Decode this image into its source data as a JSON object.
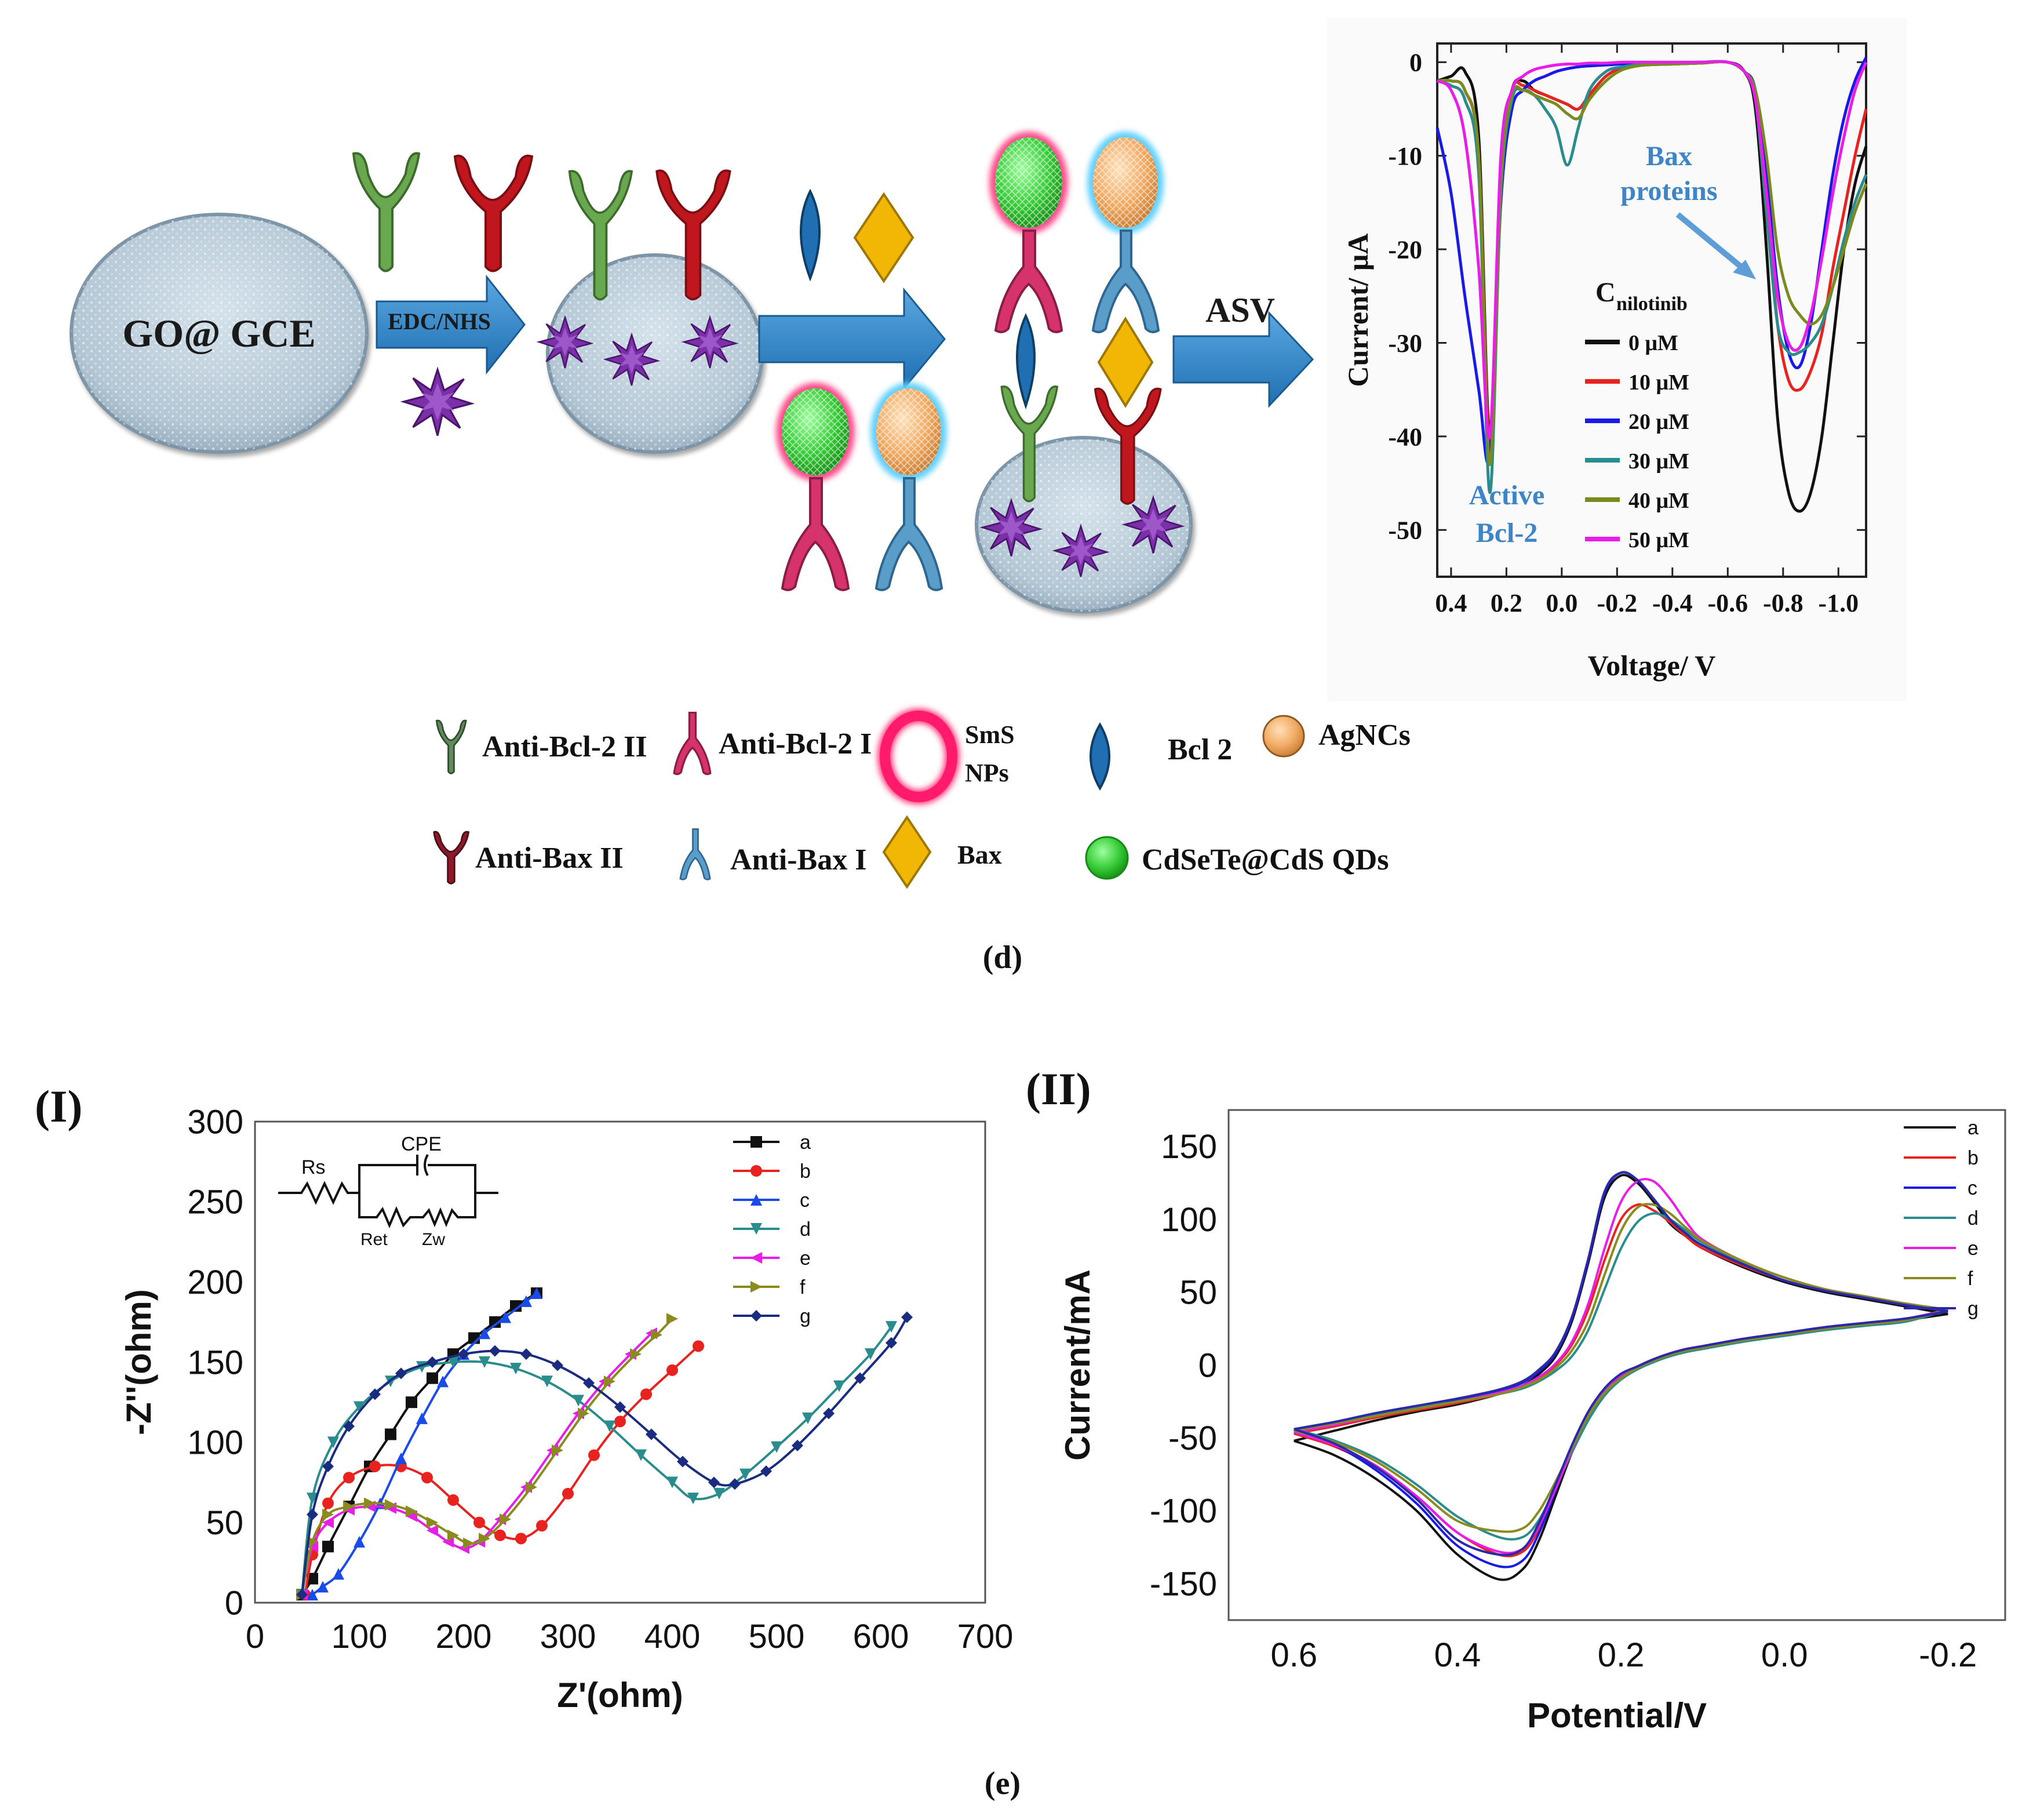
{
  "panel_d": {
    "caption": "(d)",
    "electrode_label": "GO@ GCE",
    "step1_label": "EDC/NHS",
    "step4_label": "ASV",
    "legend": {
      "anti_bcl2_ii": "Anti-Bcl-2 II",
      "anti_bcl2_i": "Anti-Bcl-2 I",
      "sms_nps_line1": "SmS",
      "sms_nps_line2": "NPs",
      "bcl2": "Bcl 2",
      "agncs": "AgNCs",
      "anti_bax_ii": "Anti-Bax II",
      "anti_bax_i": "Anti-Bax I",
      "bax": "Bax",
      "qds": "CdSeTe@CdS QDs"
    },
    "annotations": {
      "bax_line1": "Bax",
      "bax_line2": "proteins",
      "bcl2_line1": "Active",
      "bcl2_line2": "Bcl-2",
      "conc_header_main": "C",
      "conc_header_sub": "nilotinib"
    },
    "colors": {
      "electrode": "#b8cad7",
      "arrow": "#2f7fc1",
      "green_ab": "#6aa84f",
      "red_ab": "#c0171e",
      "pink_ab": "#d6336c",
      "blue_ab": "#5b9dc9",
      "bcl2_drop": "#1f6fb2",
      "bax_diamond": "#f2b705",
      "qd_green": "#34c934",
      "agnc_orange": "#f0a860",
      "annotation_blue": "#3d85c6"
    }
  },
  "panel_e": {
    "caption": "(e)",
    "label_I": "(I)",
    "label_II": "(II)",
    "circuit": {
      "rs": "Rs",
      "cpe": "CPE",
      "ret": "Ret",
      "zw": "Zw"
    }
  },
  "chart_data": [
    {
      "id": "asv",
      "type": "line",
      "title": "",
      "xlabel": "Voltage/ V",
      "ylabel": "Current/ μA",
      "xlim": [
        0.45,
        -1.1
      ],
      "ylim": [
        -55,
        2
      ],
      "xticks": [
        0.4,
        0.2,
        0.0,
        -0.2,
        -0.4,
        -0.6,
        -0.8,
        -1.0
      ],
      "xtick_labels": [
        "0.4",
        "0.2",
        "0.0",
        "-0.2",
        "-0.4",
        "-0.6",
        "-0.8",
        "-1.0"
      ],
      "yticks": [
        0,
        -10,
        -20,
        -30,
        -40,
        -50
      ],
      "ytick_labels": [
        "0",
        "-10",
        "-20",
        "-30",
        "-40",
        "-50"
      ],
      "legend_position": "right-center",
      "x": [
        0.45,
        0.4,
        0.35,
        0.3,
        0.26,
        0.22,
        0.18,
        0.14,
        0.1,
        0.06,
        0.02,
        -0.02,
        -0.06,
        -0.1,
        -0.16,
        -0.22,
        -0.3,
        -0.4,
        -0.5,
        -0.6,
        -0.66,
        -0.7,
        -0.74,
        -0.78,
        -0.82,
        -0.86,
        -0.9,
        -0.94,
        -0.98,
        -1.02,
        -1.06,
        -1.1
      ],
      "series": [
        {
          "name": "0 μM",
          "color": "#111111",
          "values": [
            -2,
            -1.5,
            -1,
            -8,
            -40,
            -12,
            -3,
            -2,
            -3,
            -3.5,
            -4,
            -4.5,
            -5,
            -3.5,
            -1.5,
            -0.6,
            -0.3,
            -0.2,
            -0.1,
            0,
            -1,
            -5,
            -20,
            -38,
            -46,
            -48,
            -46,
            -40,
            -30,
            -20,
            -13,
            -9
          ]
        },
        {
          "name": "10 μM",
          "color": "#e8231f",
          "values": [
            -2,
            -2,
            -3,
            -10,
            -41,
            -12,
            -3,
            -2.5,
            -3,
            -3.5,
            -4,
            -4.5,
            -5,
            -3.5,
            -1.5,
            -0.6,
            -0.3,
            -0.2,
            -0.1,
            0,
            -1,
            -4,
            -15,
            -28,
            -34,
            -35,
            -33,
            -29,
            -22,
            -16,
            -10,
            -5
          ]
        },
        {
          "name": "20 μM",
          "color": "#1a1ae6",
          "values": [
            -7,
            -14,
            -25,
            -35,
            -42,
            -15,
            -5,
            -3,
            -2,
            -1.5,
            -1,
            -0.7,
            -0.5,
            -0.4,
            -0.3,
            -0.2,
            -0.1,
            -0.1,
            0,
            0,
            -1,
            -3,
            -12,
            -24,
            -31,
            -32.5,
            -28,
            -20,
            -12,
            -6,
            -2,
            0.5
          ]
        },
        {
          "name": "30 μM",
          "color": "#2a8c8c",
          "values": [
            -2,
            -2.5,
            -4,
            -12,
            -46,
            -14,
            -4,
            -3,
            -3.5,
            -5,
            -7,
            -11,
            -7,
            -3,
            -1,
            -0.5,
            -0.2,
            -0.1,
            0,
            0,
            -1,
            -4,
            -16,
            -28,
            -31,
            -31,
            -30,
            -28,
            -24,
            -19,
            -15,
            -12
          ]
        },
        {
          "name": "40 μM",
          "color": "#7b8a1f",
          "values": [
            -2,
            -2,
            -3,
            -10,
            -43,
            -13,
            -3.5,
            -3,
            -3.5,
            -4,
            -4.5,
            -5.5,
            -6,
            -4,
            -2,
            -0.8,
            -0.3,
            -0.2,
            -0.1,
            0,
            -1,
            -3,
            -10,
            -20,
            -25,
            -27,
            -28,
            -27,
            -24,
            -20,
            -16,
            -13
          ]
        },
        {
          "name": "50 μM",
          "color": "#e81ee8",
          "values": [
            -2,
            -3,
            -8,
            -22,
            -40,
            -10,
            -3,
            -1.5,
            -0.8,
            -0.5,
            -0.3,
            -0.2,
            -0.2,
            -0.1,
            -0.1,
            0,
            0,
            0,
            0,
            0,
            -1,
            -4,
            -14,
            -25,
            -30,
            -30.5,
            -27,
            -21,
            -14,
            -8,
            -3,
            0
          ]
        }
      ]
    },
    {
      "id": "nyquist",
      "type": "scatter",
      "title": "",
      "xlabel": "Z'(ohm)",
      "ylabel": "-Z''(ohm)",
      "xlim": [
        0,
        700
      ],
      "ylim": [
        0,
        300
      ],
      "xticks": [
        0,
        100,
        200,
        300,
        400,
        500,
        600,
        700
      ],
      "yticks": [
        0,
        50,
        100,
        150,
        200,
        250,
        300
      ],
      "legend_position": "top-right",
      "series": [
        {
          "name": "a",
          "color": "#111111",
          "marker": "square",
          "x": [
            45,
            55,
            70,
            90,
            110,
            130,
            150,
            170,
            190,
            210,
            230,
            250,
            270
          ],
          "y": [
            5,
            15,
            35,
            60,
            85,
            105,
            125,
            140,
            155,
            165,
            175,
            185,
            193
          ]
        },
        {
          "name": "b",
          "color": "#e8231f",
          "marker": "circle",
          "x": [
            48,
            55,
            70,
            90,
            115,
            140,
            165,
            190,
            215,
            235,
            255,
            275,
            300,
            325,
            350,
            375,
            400,
            425
          ],
          "y": [
            5,
            30,
            62,
            78,
            85,
            85,
            78,
            64,
            50,
            42,
            40,
            48,
            68,
            92,
            113,
            130,
            145,
            160
          ]
        },
        {
          "name": "c",
          "color": "#1a4be6",
          "marker": "triangle-up",
          "x": [
            55,
            65,
            80,
            100,
            120,
            140,
            160,
            180,
            200,
            220,
            240,
            260,
            270
          ],
          "y": [
            5,
            10,
            18,
            38,
            62,
            90,
            115,
            138,
            155,
            168,
            178,
            188,
            193
          ]
        },
        {
          "name": "d",
          "color": "#2a8c8c",
          "marker": "triangle-down",
          "x": [
            45,
            55,
            75,
            100,
            130,
            160,
            190,
            220,
            250,
            280,
            310,
            340,
            370,
            400,
            420,
            445,
            470,
            500,
            530,
            560,
            590,
            610
          ],
          "y": [
            5,
            65,
            100,
            122,
            138,
            147,
            150,
            150,
            146,
            138,
            126,
            110,
            92,
            75,
            65,
            68,
            80,
            97,
            115,
            135,
            155,
            172
          ]
        },
        {
          "name": "e",
          "color": "#e81ee8",
          "marker": "triangle-left",
          "x": [
            45,
            55,
            70,
            90,
            110,
            130,
            150,
            170,
            185,
            200,
            215,
            235,
            260,
            285,
            310,
            335,
            360,
            380
          ],
          "y": [
            5,
            35,
            50,
            58,
            60,
            59,
            54,
            45,
            38,
            34,
            38,
            52,
            72,
            95,
            118,
            138,
            155,
            168
          ]
        },
        {
          "name": "f",
          "color": "#8a8a1f",
          "marker": "triangle-right",
          "x": [
            45,
            55,
            70,
            90,
            110,
            130,
            150,
            170,
            190,
            205,
            220,
            240,
            265,
            290,
            315,
            340,
            365,
            385,
            400
          ],
          "y": [
            5,
            38,
            55,
            60,
            62,
            61,
            57,
            50,
            42,
            37,
            40,
            52,
            72,
            95,
            118,
            138,
            155,
            167,
            177
          ]
        },
        {
          "name": "g",
          "color": "#1a2c80",
          "marker": "diamond",
          "x": [
            45,
            55,
            70,
            90,
            115,
            140,
            170,
            200,
            230,
            260,
            290,
            320,
            350,
            380,
            410,
            440,
            460,
            490,
            520,
            550,
            580,
            610,
            625
          ],
          "y": [
            5,
            55,
            85,
            110,
            130,
            143,
            150,
            155,
            157,
            155,
            148,
            137,
            122,
            105,
            88,
            75,
            74,
            82,
            98,
            118,
            140,
            162,
            178
          ]
        }
      ]
    },
    {
      "id": "cv",
      "type": "line",
      "title": "",
      "xlabel": "Potential/V",
      "ylabel": "Current/mA",
      "xlim": [
        0.68,
        -0.27
      ],
      "ylim": [
        -175,
        175
      ],
      "xticks": [
        0.6,
        0.4,
        0.2,
        0.0,
        -0.2
      ],
      "xtick_labels": [
        "0.6",
        "0.4",
        "0.2",
        "0.0",
        "-0.2"
      ],
      "yticks": [
        150,
        100,
        50,
        0,
        -50,
        -100,
        -150
      ],
      "legend_position": "top-right",
      "x": [
        0.6,
        0.55,
        0.5,
        0.45,
        0.4,
        0.35,
        0.32,
        0.3,
        0.28,
        0.26,
        0.24,
        0.22,
        0.2,
        0.18,
        0.16,
        0.14,
        0.12,
        0.1,
        0.05,
        0.0,
        -0.05,
        -0.1,
        -0.15,
        -0.2
      ],
      "series": [
        {
          "name": "a",
          "color": "#111111",
          "forward": [
            -52,
            -45,
            -38,
            -32,
            -27,
            -20,
            -14,
            -6,
            6,
            30,
            70,
            115,
            130,
            125,
            112,
            97,
            88,
            80,
            67,
            57,
            50,
            45,
            40,
            35
          ],
          "reverse": [
            -52,
            -62,
            -78,
            -100,
            -130,
            -147,
            -140,
            -120,
            -90,
            -60,
            -35,
            -18,
            -8,
            -2,
            3,
            7,
            10,
            12,
            17,
            21,
            25,
            28,
            31,
            35
          ]
        },
        {
          "name": "b",
          "color": "#e8231f",
          "forward": [
            -47,
            -42,
            -36,
            -31,
            -26,
            -20,
            -15,
            -9,
            0,
            14,
            38,
            72,
            100,
            110,
            106,
            98,
            88,
            80,
            68,
            58,
            51,
            46,
            41,
            37
          ],
          "reverse": [
            -47,
            -56,
            -70,
            -90,
            -115,
            -130,
            -128,
            -112,
            -86,
            -58,
            -34,
            -17,
            -7,
            -1,
            4,
            8,
            11,
            13,
            18,
            22,
            26,
            29,
            32,
            37
          ]
        },
        {
          "name": "c",
          "color": "#1a1ae6",
          "forward": [
            -45,
            -40,
            -34,
            -29,
            -24,
            -18,
            -12,
            -4,
            8,
            32,
            72,
            118,
            132,
            127,
            114,
            100,
            90,
            82,
            69,
            58,
            51,
            46,
            41,
            37
          ],
          "reverse": [
            -45,
            -55,
            -72,
            -95,
            -124,
            -138,
            -134,
            -115,
            -86,
            -57,
            -33,
            -17,
            -7,
            -1,
            4,
            8,
            11,
            13,
            18,
            22,
            26,
            29,
            32,
            37
          ]
        },
        {
          "name": "d",
          "color": "#2a8c8c",
          "forward": [
            -44,
            -39,
            -34,
            -29,
            -25,
            -20,
            -16,
            -11,
            -4,
            6,
            24,
            52,
            80,
            98,
            104,
            100,
            92,
            84,
            70,
            60,
            52,
            47,
            42,
            38
          ],
          "reverse": [
            -44,
            -52,
            -64,
            -82,
            -104,
            -118,
            -118,
            -106,
            -84,
            -60,
            -38,
            -21,
            -10,
            -3,
            2,
            6,
            9,
            11,
            16,
            20,
            24,
            27,
            30,
            38
          ]
        },
        {
          "name": "e",
          "color": "#e81ee8",
          "forward": [
            -46,
            -41,
            -35,
            -30,
            -25,
            -19,
            -14,
            -8,
            1,
            16,
            42,
            80,
            112,
            126,
            126,
            114,
            98,
            86,
            71,
            60,
            52,
            47,
            42,
            38
          ],
          "reverse": [
            -46,
            -55,
            -69,
            -90,
            -115,
            -128,
            -126,
            -110,
            -85,
            -58,
            -34,
            -17,
            -7,
            -1,
            4,
            8,
            11,
            13,
            18,
            22,
            26,
            29,
            32,
            38
          ]
        },
        {
          "name": "f",
          "color": "#8a8a1f",
          "forward": [
            -45,
            -40,
            -35,
            -30,
            -25,
            -20,
            -15,
            -10,
            -2,
            10,
            30,
            62,
            92,
            108,
            110,
            104,
            94,
            85,
            71,
            60,
            52,
            47,
            42,
            38
          ],
          "reverse": [
            -45,
            -53,
            -66,
            -85,
            -107,
            -114,
            -112,
            -100,
            -80,
            -57,
            -35,
            -19,
            -9,
            -2,
            3,
            7,
            10,
            12,
            17,
            21,
            25,
            28,
            31,
            38
          ]
        },
        {
          "name": "g",
          "color": "#2a2aa8",
          "forward": [
            -44,
            -39,
            -33,
            -28,
            -23,
            -17,
            -11,
            -3,
            9,
            33,
            73,
            119,
            132,
            127,
            114,
            100,
            90,
            82,
            69,
            58,
            51,
            46,
            41,
            37
          ],
          "reverse": [
            -44,
            -54,
            -70,
            -92,
            -120,
            -130,
            -126,
            -108,
            -82,
            -55,
            -32,
            -16,
            -6,
            -1,
            4,
            8,
            11,
            13,
            18,
            22,
            26,
            29,
            32,
            37
          ]
        }
      ]
    }
  ]
}
